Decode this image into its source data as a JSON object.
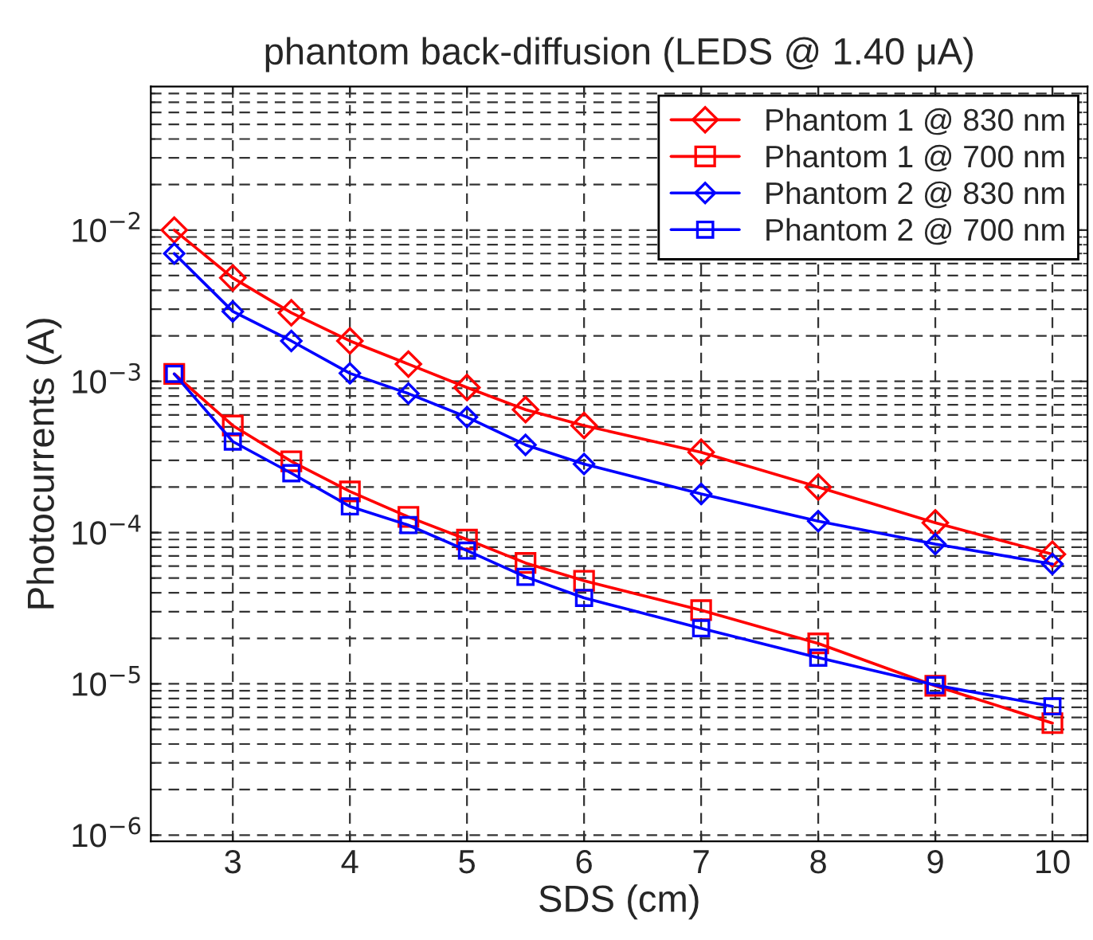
{
  "chart_data": {
    "type": "line",
    "title": "phantom back-diffusion (LEDS @ 1.40 μA)",
    "xlabel": "SDS (cm)",
    "ylabel": "Photocurrents (A)",
    "x": [
      2.5,
      3,
      3.5,
      4,
      4.5,
      5,
      5.5,
      6,
      7,
      8,
      9,
      10
    ],
    "series": [
      {
        "name": "Phantom 1 @ 830 nm",
        "color": "#ff0000",
        "marker": "diamond",
        "values": [
          0.01,
          0.00483,
          0.00284,
          0.00185,
          0.0013,
          0.00091,
          0.00065,
          0.00051,
          0.00034,
          0.0002,
          0.000116,
          7.2e-05
        ]
      },
      {
        "name": "Phantom 1 @ 700 nm",
        "color": "#ff0000",
        "marker": "square",
        "values": [
          0.00112,
          0.00051,
          0.000296,
          0.000187,
          0.000127,
          9e-05,
          6.3e-05,
          4.8e-05,
          3.07e-05,
          1.85e-05,
          9.7e-06,
          5.5e-06
        ]
      },
      {
        "name": "Phantom 2 @ 830 nm",
        "color": "#0000ff",
        "marker": "diamond",
        "values": [
          0.007,
          0.0029,
          0.00185,
          0.00113,
          0.00083,
          0.00058,
          0.00038,
          0.000284,
          0.00018,
          0.000119,
          8.4e-05,
          6.2e-05
        ]
      },
      {
        "name": "Phantom 2 @ 700 nm",
        "color": "#0000ff",
        "marker": "square",
        "values": [
          0.00112,
          0.0004,
          0.000247,
          0.000149,
          0.000112,
          7.6e-05,
          5.1e-05,
          3.7e-05,
          2.33e-05,
          1.49e-05,
          9.8e-06,
          7.1e-06
        ]
      }
    ],
    "log": "y",
    "xlim": [
      2.3,
      10.3
    ],
    "ylim": [
      9.1e-07,
      0.089
    ],
    "xticks": [
      3,
      4,
      5,
      6,
      7,
      8,
      9,
      10
    ],
    "yticks": [
      {
        "value": 1e-06,
        "label": "10$^{−6}$"
      },
      {
        "value": 1e-05,
        "label": "10$^{−5}$"
      },
      {
        "value": 0.0001,
        "label": "10$^{−4}$"
      },
      {
        "value": 0.001,
        "label": "10$^{−3}$"
      },
      {
        "value": 0.01,
        "label": "10$^{−2}$"
      }
    ],
    "grid": true,
    "legend": "top right",
    "line_style": "solid"
  }
}
